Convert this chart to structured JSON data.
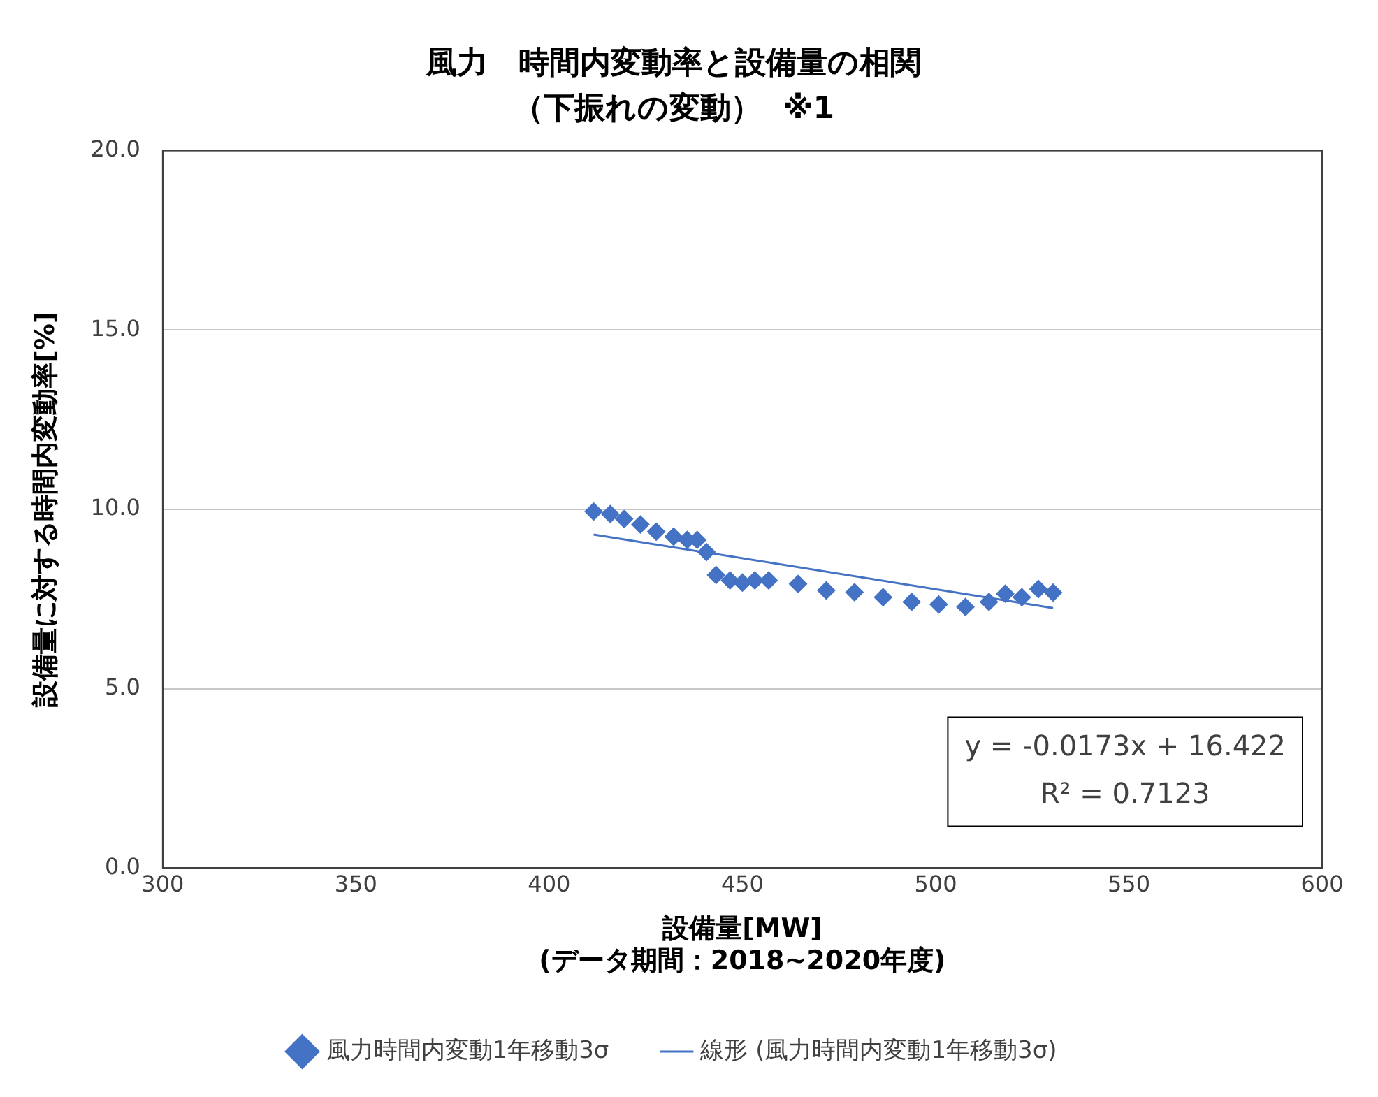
{
  "chart_data": {
    "type": "scatter",
    "title": "風力　時間内変動率と設備量の相関",
    "subtitle": "（下振れの変動）  ※1",
    "xlabel": "設備量[MW]\n(データ期間：2018~2020年度)",
    "ylabel": "設備量に対する時間内変動率[%]",
    "x": [
      411.5,
      415.8,
      419.4,
      423.6,
      427.7,
      432.2,
      435.7,
      438.3,
      440.7,
      443.2,
      446.8,
      450,
      453.2,
      456.8,
      464.4,
      471.7,
      479,
      486.4,
      493.8,
      500.8,
      507.7,
      513.8,
      518,
      522.3,
      526.6,
      530.4
    ],
    "series": [
      {
        "name": "風力時間内変動1年移動3σ",
        "color": "#4472c4",
        "marker": "diamond",
        "values": [
          9.94,
          9.87,
          9.73,
          9.58,
          9.38,
          9.24,
          9.15,
          9.15,
          8.81,
          8.17,
          8.02,
          7.96,
          8.02,
          8.02,
          7.92,
          7.74,
          7.69,
          7.55,
          7.42,
          7.35,
          7.28,
          7.42,
          7.65,
          7.55,
          7.78,
          7.68
        ]
      },
      {
        "name": "線形 (風力時間内変動1年移動3σ)",
        "type": "line",
        "color": "#4472c4",
        "marker": "none",
        "x": [
          411.5,
          530.4
        ],
        "values": [
          9.3,
          7.25
        ]
      }
    ],
    "xlim": [
      300,
      600
    ],
    "xticks": [
      300,
      350,
      400,
      450,
      500,
      550,
      600
    ],
    "ylim": [
      0,
      20
    ],
    "yticks": [
      {
        "value": 0,
        "label": "0.0"
      },
      {
        "value": 5,
        "label": "5.0"
      },
      {
        "value": 10,
        "label": "10.0"
      },
      {
        "value": 15,
        "label": "15.0"
      },
      {
        "value": 20,
        "label": "20.0"
      }
    ],
    "grid": "y",
    "legend": "bottom",
    "annotations": [
      "y = -0.0173x + 16.422",
      "R² = 0.7123"
    ]
  }
}
